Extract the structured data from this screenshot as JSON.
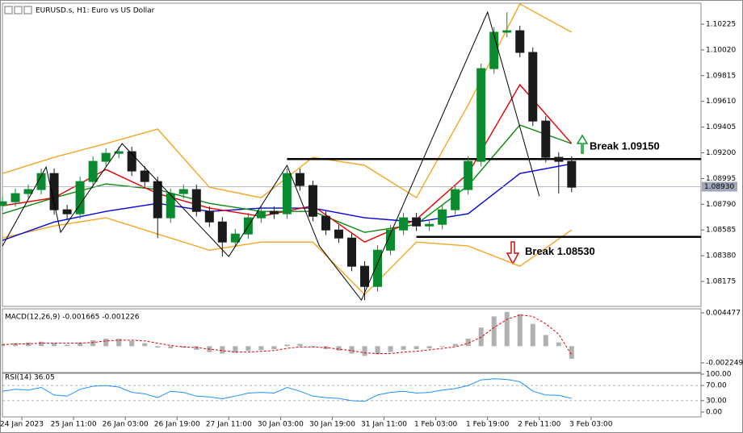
{
  "chart_data": [
    {
      "type": "candlestick",
      "title": "EURUSD.s, H1:  Euro vs US Dollar",
      "xlim": [
        0,
        216
      ],
      "ylim": [
        1.07976,
        1.10392
      ],
      "yticks": [
        1.10225,
        {
          "value": 1.1002,
          "label": "1.10020"
        },
        1.09815,
        {
          "value": 1.0961,
          "label": "1.09610"
        },
        1.09405,
        {
          "value": 1.092,
          "label": "1.09200"
        },
        1.08995,
        {
          "value": 1.0879,
          "label": "1.08790"
        },
        1.08585,
        {
          "value": 1.0838,
          "label": "1.08380"
        },
        1.08175
      ],
      "up_color": "#0a8a2e",
      "down_color": "#1a1a1a",
      "x": [
        0,
        4,
        8,
        12,
        16,
        20,
        24,
        28,
        32,
        36,
        40,
        44,
        48,
        52,
        56,
        60,
        64,
        68,
        72,
        76,
        80,
        84,
        88,
        92,
        96,
        100,
        104,
        108,
        112,
        116,
        120,
        124,
        128,
        132,
        136,
        140,
        144,
        148,
        152,
        156,
        160,
        164,
        168,
        172,
        176
      ],
      "open": [
        1.0878,
        1.0881,
        1.08875,
        1.08907,
        1.09035,
        1.08746,
        1.08714,
        1.08971,
        1.09132,
        1.09196,
        1.09209,
        1.09055,
        1.08971,
        1.08682,
        1.08875,
        1.08907,
        1.08733,
        1.08649,
        1.08489,
        1.08553,
        1.08682,
        1.08733,
        1.08714,
        1.09035,
        1.08939,
        1.08694,
        1.08585,
        1.08521,
        1.08296,
        1.08135,
        1.08424,
        1.08585,
        1.08682,
        1.08617,
        1.0863,
        1.08746,
        1.08907,
        1.09132,
        1.09871,
        1.10161,
        1.10173,
        1.1,
        1.09453,
        1.09164,
        1.09132
      ],
      "high": [
        1.0885,
        1.08915,
        1.08947,
        1.09075,
        1.09075,
        1.08786,
        1.09011,
        1.09172,
        1.09236,
        1.09249,
        1.09249,
        1.09095,
        1.09011,
        1.08915,
        1.08947,
        1.08947,
        1.08773,
        1.08689,
        1.08593,
        1.08722,
        1.08773,
        1.08773,
        1.09075,
        1.09075,
        1.08979,
        1.08734,
        1.08625,
        1.08561,
        1.08336,
        1.08464,
        1.08625,
        1.08722,
        1.08722,
        1.0867,
        1.08786,
        1.08947,
        1.09172,
        1.09911,
        1.10201,
        1.1032,
        1.10213,
        1.1004,
        1.09493,
        1.09204,
        1.09172
      ],
      "low": [
        1.0874,
        1.0877,
        1.08835,
        1.08867,
        1.08706,
        1.08674,
        1.08674,
        1.08931,
        1.09092,
        1.09156,
        1.09015,
        1.08931,
        1.08521,
        1.08642,
        1.08835,
        1.08693,
        1.08609,
        1.08373,
        1.08449,
        1.08513,
        1.08642,
        1.08674,
        1.08674,
        1.08899,
        1.08654,
        1.08545,
        1.08481,
        1.08256,
        1.08026,
        1.08095,
        1.08384,
        1.08545,
        1.08577,
        1.08577,
        1.0859,
        1.08706,
        1.08867,
        1.09092,
        1.09831,
        1.10121,
        1.0996,
        1.09413,
        1.09124,
        1.08875,
        1.08886
      ],
      "close": [
        1.0881,
        1.08875,
        1.08907,
        1.09035,
        1.08746,
        1.08714,
        1.08971,
        1.09132,
        1.09196,
        1.09209,
        1.09055,
        1.08971,
        1.08682,
        1.08875,
        1.08907,
        1.08733,
        1.08649,
        1.08489,
        1.08553,
        1.08682,
        1.08733,
        1.08714,
        1.09035,
        1.08939,
        1.08694,
        1.08585,
        1.08521,
        1.08296,
        1.08135,
        1.08424,
        1.08585,
        1.08682,
        1.08617,
        1.0863,
        1.08746,
        1.08907,
        1.09132,
        1.09871,
        1.10161,
        1.10173,
        1.1,
        1.09453,
        1.09164,
        1.09132,
        1.08926
      ],
      "overlays": [
        {
          "color": "#f5a623",
          "x": [
            0,
            16,
            32,
            48,
            64,
            80,
            96,
            112,
            128,
            144,
            160,
            176
          ],
          "values": [
            1.09035,
            1.09164,
            1.09273,
            1.09389,
            1.08926,
            1.08842,
            1.09164,
            1.091,
            1.08842,
            1.09582,
            1.10386,
            1.10161
          ]
        },
        {
          "color": "#f5a623",
          "x": [
            0,
            16,
            32,
            48,
            64,
            80,
            96,
            112,
            128,
            144,
            160,
            176
          ],
          "values": [
            1.08521,
            1.08617,
            1.08682,
            1.08553,
            1.08424,
            1.08489,
            1.08489,
            1.08071,
            1.08489,
            1.08457,
            1.08296,
            1.08585
          ]
        },
        {
          "color": "#0000e0",
          "x": [
            0,
            16,
            32,
            48,
            64,
            80,
            96,
            112,
            128,
            144,
            160,
            176
          ],
          "values": [
            1.08502,
            1.08649,
            1.08733,
            1.08797,
            1.08733,
            1.08759,
            1.08759,
            1.08682,
            1.08649,
            1.08714,
            1.09035,
            1.09112
          ]
        },
        {
          "color": "#0a8a0a",
          "x": [
            0,
            16,
            32,
            48,
            64,
            80,
            96,
            112,
            128,
            144,
            160,
            176
          ],
          "values": [
            1.08714,
            1.08842,
            1.08952,
            1.08907,
            1.08797,
            1.08733,
            1.08733,
            1.08566,
            1.0863,
            1.08939,
            1.09421,
            1.09273
          ]
        },
        {
          "color": "#e00000",
          "x": [
            0,
            16,
            32,
            48,
            64,
            80,
            96,
            112,
            128,
            144,
            160,
            176
          ],
          "values": [
            1.08778,
            1.08842,
            1.09067,
            1.08875,
            1.08759,
            1.08694,
            1.08778,
            1.08489,
            1.08669,
            1.09035,
            1.09743,
            1.09273
          ]
        }
      ],
      "zigzag": {
        "color": "#000000",
        "x": [
          0,
          13.5,
          18,
          37,
          70,
          88,
          98,
          111,
          150,
          166
        ],
        "values": [
          1.08457,
          1.09087,
          1.08566,
          1.09273,
          1.08373,
          1.091,
          1.08457,
          1.08026,
          1.10321,
          1.08855
        ]
      },
      "hlines": [
        {
          "value": 1.0915,
          "label": "Break 1.09150",
          "x_from": 88
        },
        {
          "value": 1.0853,
          "label": "Break 1.08530",
          "x_from": 128
        }
      ],
      "price_line": {
        "value": 1.0893,
        "label": "1.08930"
      }
    },
    {
      "type": "macd",
      "title": "MACD(12,26,9) -0.001665 -0.001226",
      "xlim": [
        0,
        216
      ],
      "ylim": [
        -0.00355,
        0.00502
      ],
      "yticks": [
        0.004477,
        -0.002249
      ],
      "x": [
        0,
        4,
        8,
        12,
        16,
        20,
        24,
        28,
        32,
        36,
        40,
        44,
        48,
        52,
        56,
        60,
        64,
        68,
        72,
        76,
        80,
        84,
        88,
        92,
        96,
        100,
        104,
        108,
        112,
        116,
        120,
        124,
        128,
        132,
        136,
        140,
        144,
        148,
        152,
        156,
        160,
        164,
        168,
        172,
        176
      ],
      "histogram_color": "#b0b0b0",
      "signal_color": "#e00000",
      "histogram": [
        0.0003,
        0.0004,
        0.0005,
        0.0006,
        0.0004,
        0.0002,
        0.0005,
        0.0008,
        0.001,
        0.001,
        0.0007,
        0.0004,
        -0.0002,
        -0.0003,
        -0.0002,
        -0.0005,
        -0.0008,
        -0.001,
        -0.0009,
        -0.0006,
        -0.0005,
        -0.0004,
        0.0002,
        0.0003,
        -0.0001,
        -0.0004,
        -0.0006,
        -0.001,
        -0.0013,
        -0.0011,
        -0.0008,
        -0.0005,
        -0.0004,
        -0.0003,
        -0.0001,
        0.0003,
        0.001,
        0.0025,
        0.004,
        0.0046,
        0.0043,
        0.003,
        0.0015,
        0.0005,
        -0.0017
      ],
      "signal": [
        0.0002,
        0.0003,
        0.0003,
        0.0004,
        0.0004,
        0.0004,
        0.0004,
        0.0005,
        0.0007,
        0.0008,
        0.0008,
        0.0007,
        0.0004,
        0.0001,
        -0.0001,
        -0.0002,
        -0.0004,
        -0.0006,
        -0.0008,
        -0.0008,
        -0.0007,
        -0.0006,
        -0.0003,
        -0.0001,
        -0.0001,
        -0.0002,
        -0.0004,
        -0.0006,
        -0.0009,
        -0.001,
        -0.001,
        -0.0008,
        -0.0007,
        -0.0005,
        -0.0003,
        -0.0001,
        0.0004,
        0.0012,
        0.0025,
        0.0036,
        0.0042,
        0.004,
        0.003,
        0.0016,
        -0.0012
      ]
    },
    {
      "type": "line",
      "title": "RSI(14) 36.05",
      "xlim": [
        0,
        216
      ],
      "ylim": [
        -12.8,
        104.3
      ],
      "yticks": [
        {
          "value": 100,
          "label": "100.00"
        },
        {
          "value": 70,
          "label": "70.00"
        },
        {
          "value": 30,
          "label": "30.00"
        },
        {
          "value": 0,
          "label": "0.00"
        }
      ],
      "levels": [
        70,
        30
      ],
      "color": "#1e90ff",
      "xticks": [
        {
          "value": 6,
          "label": "24 Jan 2023"
        },
        {
          "value": 22,
          "label": "25 Jan 11:00"
        },
        {
          "value": 38,
          "label": "26 Jan 03:00"
        },
        {
          "value": 54,
          "label": "26 Jan 19:00"
        },
        {
          "value": 70,
          "label": "27 Jan 11:00"
        },
        {
          "value": 86,
          "label": "30 Jan 03:00"
        },
        {
          "value": 102,
          "label": "30 Jan 19:00"
        },
        {
          "value": 118,
          "label": "31 Jan 11:00"
        },
        {
          "value": 134,
          "label": "1 Feb 03:00"
        },
        {
          "value": 150,
          "label": "1 Feb 19:00"
        },
        {
          "value": 166,
          "label": "2 Feb 11:00"
        },
        {
          "value": 182,
          "label": "3 Feb 03:00"
        }
      ],
      "x": [
        0,
        4,
        8,
        12,
        16,
        20,
        24,
        28,
        32,
        36,
        40,
        44,
        48,
        52,
        56,
        60,
        64,
        68,
        72,
        76,
        80,
        84,
        88,
        92,
        96,
        100,
        104,
        108,
        112,
        116,
        120,
        124,
        128,
        132,
        136,
        140,
        144,
        148,
        152,
        156,
        160,
        164,
        168,
        172,
        176
      ],
      "values": [
        55,
        60,
        58,
        65,
        45,
        42,
        60,
        68,
        70,
        66,
        52,
        48,
        38,
        55,
        52,
        42,
        40,
        35,
        42,
        50,
        52,
        50,
        65,
        55,
        42,
        38,
        36,
        30,
        28,
        45,
        52,
        55,
        50,
        52,
        58,
        62,
        70,
        85,
        88,
        86,
        80,
        55,
        45,
        44,
        36.05
      ]
    }
  ]
}
